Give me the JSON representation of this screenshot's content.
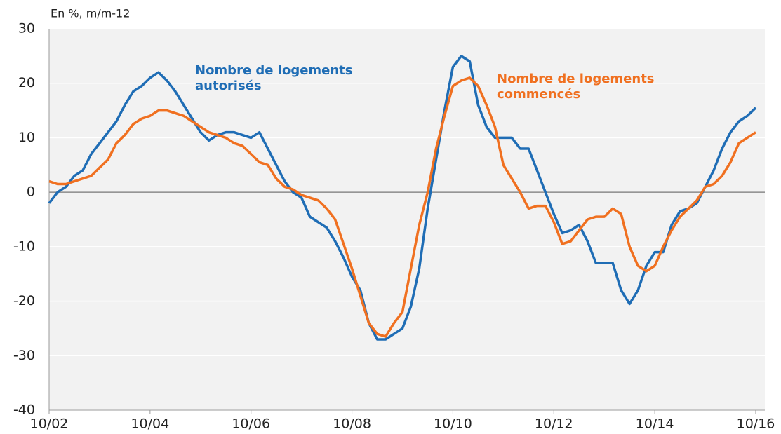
{
  "chart_data": {
    "type": "line",
    "y_label": "En %, m/m-12",
    "x": [
      "2002-10",
      "2002-12",
      "2003-02",
      "2003-04",
      "2003-06",
      "2003-08",
      "2003-10",
      "2003-12",
      "2004-02",
      "2004-04",
      "2004-06",
      "2004-08",
      "2004-10",
      "2004-12",
      "2005-02",
      "2005-04",
      "2005-06",
      "2005-08",
      "2005-10",
      "2005-12",
      "2006-02",
      "2006-04",
      "2006-06",
      "2006-08",
      "2006-10",
      "2006-12",
      "2007-02",
      "2007-04",
      "2007-06",
      "2007-08",
      "2007-10",
      "2007-12",
      "2008-02",
      "2008-04",
      "2008-06",
      "2008-08",
      "2008-10",
      "2008-12",
      "2009-02",
      "2009-04",
      "2009-06",
      "2009-08",
      "2009-10",
      "2009-12",
      "2010-02",
      "2010-04",
      "2010-06",
      "2010-08",
      "2010-10",
      "2010-12",
      "2011-02",
      "2011-04",
      "2011-06",
      "2011-08",
      "2011-10",
      "2011-12",
      "2012-02",
      "2012-04",
      "2012-06",
      "2012-08",
      "2012-10",
      "2012-12",
      "2013-02",
      "2013-04",
      "2013-06",
      "2013-08",
      "2013-10",
      "2013-12",
      "2014-02",
      "2014-04",
      "2014-06",
      "2014-08",
      "2014-10",
      "2014-12",
      "2015-02",
      "2015-04",
      "2015-06",
      "2015-08",
      "2015-10",
      "2015-12",
      "2016-02",
      "2016-04",
      "2016-06",
      "2016-08",
      "2016-10"
    ],
    "series": [
      {
        "name": "Nombre de logements autorisés",
        "color": "#1f6db5",
        "values": [
          -2,
          0,
          1,
          3,
          4,
          7,
          9,
          11,
          13,
          16,
          18.5,
          19.5,
          21,
          22,
          20.5,
          18.5,
          16,
          13.5,
          11,
          9.5,
          10.5,
          11,
          11,
          10.5,
          10,
          11,
          8,
          5,
          2,
          0,
          -1,
          -4.5,
          -5.5,
          -6.5,
          -9,
          -12,
          -15.5,
          -18,
          -24,
          -27,
          -27,
          -26,
          -25,
          -21,
          -14,
          -3,
          6,
          15,
          23,
          25,
          24,
          16,
          12,
          10,
          10,
          10,
          8,
          8,
          4,
          0,
          -4,
          -7.5,
          -7,
          -6,
          -9,
          -13,
          -13,
          -13,
          -18,
          -20.5,
          -18,
          -13.5,
          -11,
          -11,
          -6,
          -3.5,
          -3,
          -2,
          1,
          4,
          8,
          11,
          13,
          14,
          15.5
        ]
      },
      {
        "name": "Nombre de logements commencés",
        "color": "#f07020",
        "values": [
          2,
          1.5,
          1.5,
          2,
          2.5,
          3,
          4.5,
          6,
          9,
          10.5,
          12.5,
          13.5,
          14,
          15,
          15,
          14.5,
          14,
          13,
          12,
          11,
          10.5,
          10,
          9,
          8.5,
          7,
          5.5,
          5,
          2.5,
          1,
          0.5,
          -0.5,
          -1,
          -1.5,
          -3,
          -5,
          -9.5,
          -14,
          -19,
          -24,
          -26,
          -26.5,
          -24,
          -22,
          -14,
          -6,
          0,
          8,
          14,
          19.5,
          20.5,
          21,
          19.5,
          16,
          12,
          5,
          2.5,
          0,
          -3,
          -2.5,
          -2.5,
          -5.5,
          -9.5,
          -9,
          -7,
          -5,
          -4.5,
          -4.5,
          -3,
          -4,
          -10,
          -13.5,
          -14.5,
          -13.5,
          -10,
          -7,
          -4.5,
          -3,
          -1.5,
          1,
          1.5,
          3,
          5.5,
          9,
          10,
          11
        ]
      }
    ],
    "xlim": [
      "2002-10",
      "2016-10"
    ],
    "xticks": [
      {
        "value": "2002-10",
        "label": "10/02"
      },
      {
        "value": "2004-10",
        "label": "10/04"
      },
      {
        "value": "2006-10",
        "label": "10/06"
      },
      {
        "value": "2008-10",
        "label": "10/08"
      },
      {
        "value": "2010-10",
        "label": "10/10"
      },
      {
        "value": "2012-10",
        "label": "10/12"
      },
      {
        "value": "2014-10",
        "label": "10/14"
      },
      {
        "value": "2016-10",
        "label": "10/16"
      }
    ],
    "ylim": [
      -40,
      30
    ],
    "yticks": [
      -40,
      -30,
      -20,
      -10,
      0,
      10,
      20,
      30
    ],
    "grid": true
  }
}
